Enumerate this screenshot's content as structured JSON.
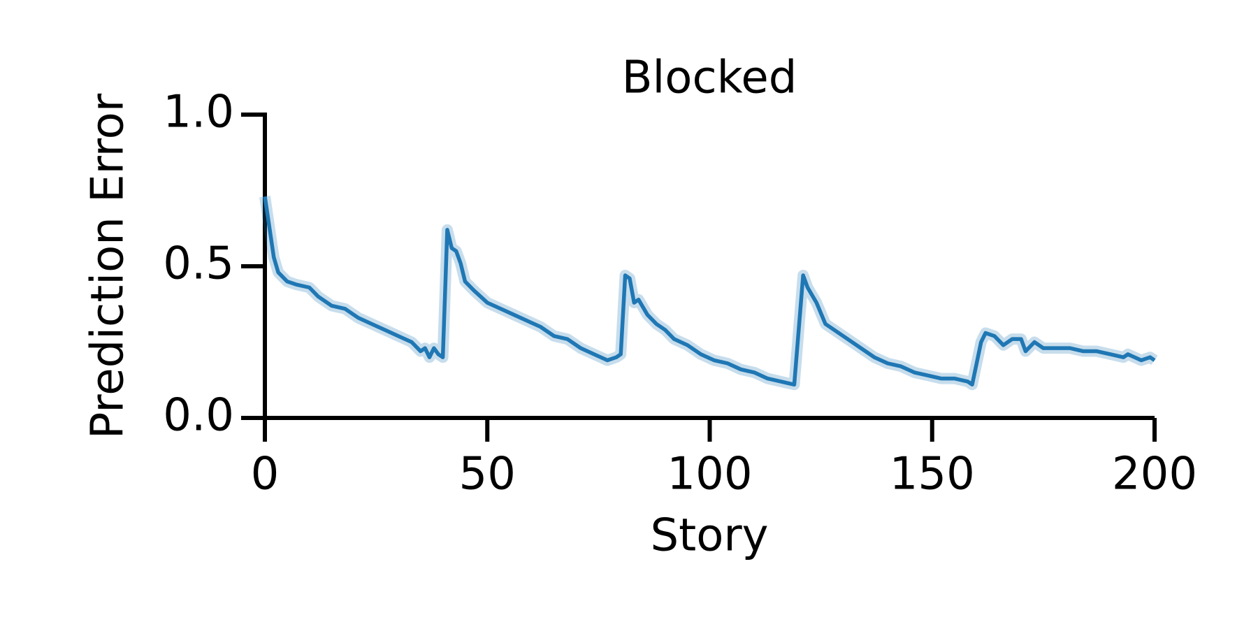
{
  "chart_data": {
    "type": "line",
    "title": "Blocked",
    "x_label": "Story",
    "y_label": "Prediction Error",
    "series": [
      {
        "name": "Blocked",
        "color": "#1f77b4",
        "x": [
          0,
          2,
          3,
          5,
          7,
          10,
          12,
          15,
          18,
          21,
          24,
          27,
          30,
          33,
          35,
          36,
          37,
          38,
          39,
          40,
          41,
          42,
          43,
          44,
          45,
          47,
          50,
          53,
          56,
          59,
          62,
          65,
          68,
          71,
          74,
          77,
          79,
          80,
          81,
          82,
          83,
          84,
          86,
          88,
          90,
          92,
          95,
          98,
          101,
          104,
          107,
          110,
          113,
          116,
          119,
          121,
          122,
          124,
          126,
          128,
          131,
          134,
          137,
          140,
          143,
          146,
          149,
          152,
          155,
          158,
          159,
          161,
          162,
          164,
          166,
          168,
          170,
          171,
          173,
          175,
          178,
          181,
          184,
          187,
          190,
          193,
          194,
          197,
          199,
          200
        ],
        "values": [
          0.73,
          0.53,
          0.48,
          0.45,
          0.44,
          0.43,
          0.4,
          0.37,
          0.36,
          0.33,
          0.31,
          0.29,
          0.27,
          0.25,
          0.22,
          0.23,
          0.2,
          0.23,
          0.21,
          0.2,
          0.62,
          0.56,
          0.55,
          0.51,
          0.45,
          0.42,
          0.38,
          0.36,
          0.34,
          0.32,
          0.3,
          0.27,
          0.26,
          0.23,
          0.21,
          0.19,
          0.2,
          0.21,
          0.47,
          0.46,
          0.38,
          0.39,
          0.34,
          0.31,
          0.29,
          0.26,
          0.24,
          0.21,
          0.19,
          0.18,
          0.16,
          0.15,
          0.13,
          0.12,
          0.11,
          0.47,
          0.43,
          0.38,
          0.31,
          0.29,
          0.26,
          0.23,
          0.2,
          0.18,
          0.17,
          0.15,
          0.14,
          0.13,
          0.13,
          0.12,
          0.11,
          0.25,
          0.28,
          0.27,
          0.24,
          0.26,
          0.26,
          0.22,
          0.25,
          0.23,
          0.23,
          0.23,
          0.22,
          0.22,
          0.21,
          0.2,
          0.21,
          0.19,
          0.2,
          0.19
        ]
      }
    ],
    "xlim": [
      0,
      200
    ],
    "ylim": [
      0,
      1
    ],
    "xticks": [
      0,
      50,
      100,
      150,
      200
    ],
    "yticks": [
      {
        "value": 0,
        "label": "0.0"
      },
      {
        "value": 0.5,
        "label": "0.5"
      },
      {
        "value": 1,
        "label": "1.0"
      }
    ]
  }
}
